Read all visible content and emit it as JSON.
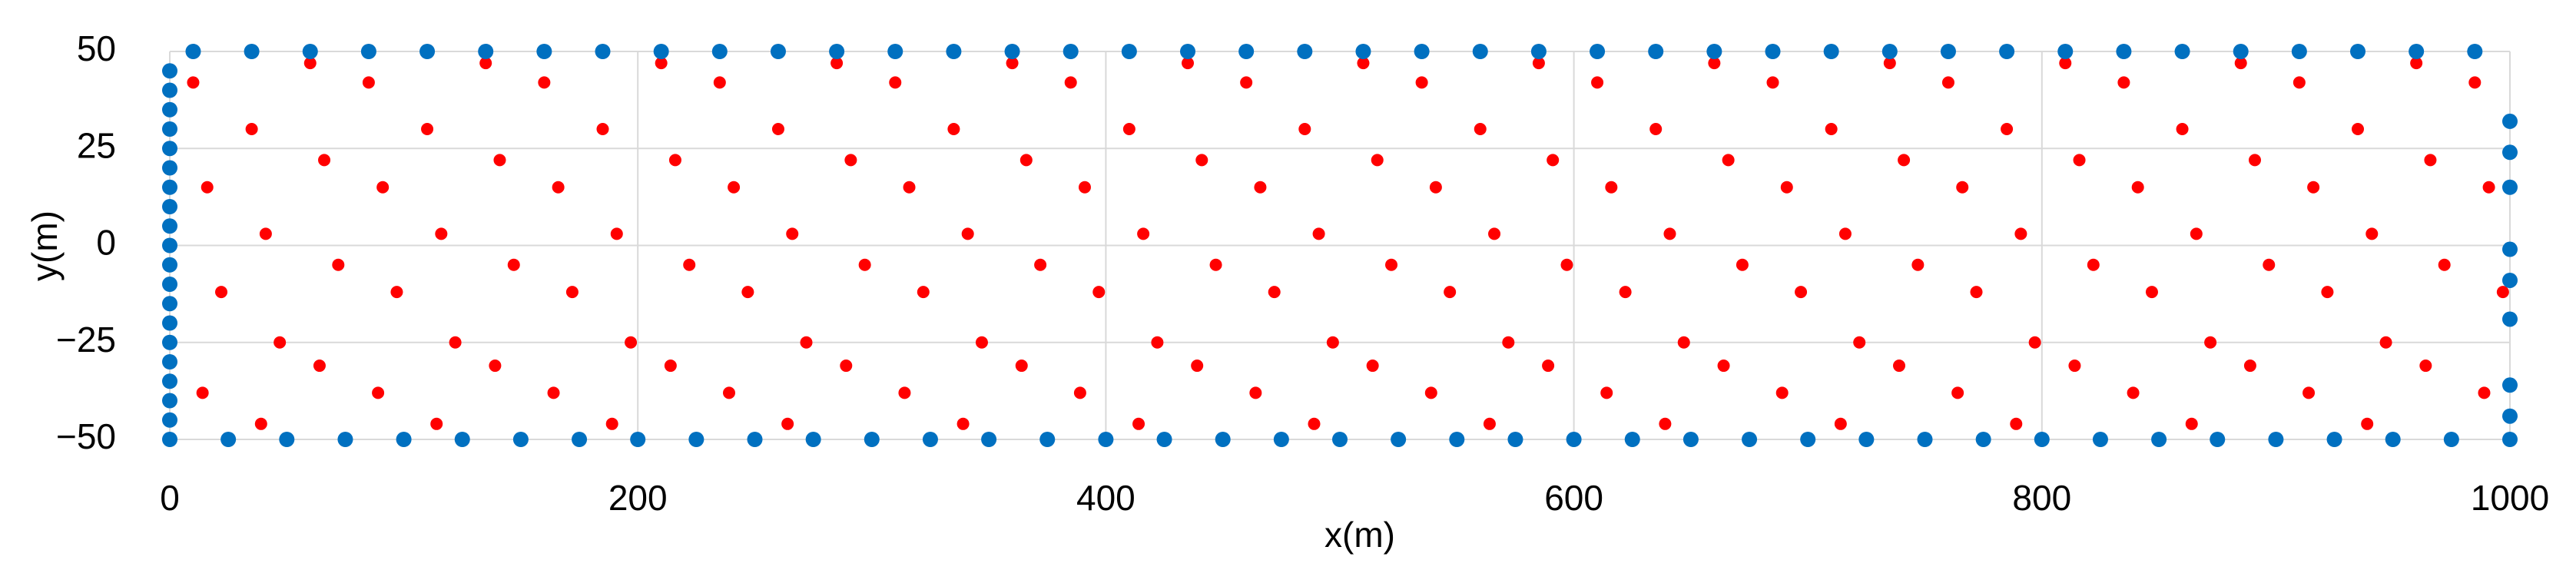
{
  "chart_data": {
    "type": "scatter",
    "x_label": "x(m)",
    "y_label": "y(m)",
    "xlim": [
      0,
      1000
    ],
    "ylim": [
      -50,
      50
    ],
    "xticks": [
      0,
      200,
      400,
      600,
      800,
      1000
    ],
    "yticks": [
      50,
      25,
      0,
      {
        "value": -25,
        "label": "−25"
      },
      {
        "value": -50,
        "label": "−50"
      }
    ],
    "grid": true,
    "series": [
      {
        "color": "#ff0000",
        "x": [
          10,
          16,
          22,
          14,
          35,
          41,
          47,
          39,
          60,
          66,
          72,
          64,
          85,
          91,
          97,
          89,
          110,
          116,
          122,
          114,
          135,
          141,
          147,
          139,
          160,
          166,
          172,
          164,
          185,
          191,
          197,
          189,
          210,
          216,
          222,
          214,
          235,
          241,
          247,
          239,
          260,
          266,
          272,
          264,
          285,
          291,
          297,
          289,
          310,
          316,
          322,
          314,
          335,
          341,
          347,
          339,
          360,
          366,
          372,
          364,
          385,
          391,
          397,
          389,
          410,
          416,
          422,
          414,
          435,
          441,
          447,
          439,
          460,
          466,
          472,
          464,
          485,
          491,
          497,
          489,
          510,
          516,
          522,
          514,
          535,
          541,
          547,
          539,
          560,
          566,
          572,
          564,
          585,
          591,
          597,
          589,
          610,
          616,
          622,
          614,
          635,
          641,
          647,
          639,
          660,
          666,
          672,
          664,
          685,
          691,
          697,
          689,
          710,
          716,
          722,
          714,
          735,
          741,
          747,
          739,
          760,
          766,
          772,
          764,
          785,
          791,
          797,
          789,
          810,
          816,
          822,
          814,
          835,
          841,
          847,
          839,
          860,
          866,
          872,
          864,
          885,
          891,
          897,
          889,
          910,
          916,
          922,
          914,
          935,
          941,
          947,
          939,
          960,
          966,
          972,
          964,
          985,
          991,
          997,
          989
        ],
        "y": [
          42,
          15,
          -12,
          -38,
          30,
          3,
          -25,
          -46,
          47,
          22,
          -5,
          -31,
          42,
          15,
          -12,
          -38,
          30,
          3,
          -25,
          -46,
          47,
          22,
          -5,
          -31,
          42,
          15,
          -12,
          -38,
          30,
          3,
          -25,
          -46,
          47,
          22,
          -5,
          -31,
          42,
          15,
          -12,
          -38,
          30,
          3,
          -25,
          -46,
          47,
          22,
          -5,
          -31,
          42,
          15,
          -12,
          -38,
          30,
          3,
          -25,
          -46,
          47,
          22,
          -5,
          -31,
          42,
          15,
          -12,
          -38,
          30,
          3,
          -25,
          -46,
          47,
          22,
          -5,
          -31,
          42,
          15,
          -12,
          -38,
          30,
          3,
          -25,
          -46,
          47,
          22,
          -5,
          -31,
          42,
          15,
          -12,
          -38,
          30,
          3,
          -25,
          -46,
          47,
          22,
          -5,
          -31,
          42,
          15,
          -12,
          -38,
          30,
          3,
          -25,
          -46,
          47,
          22,
          -5,
          -31,
          42,
          15,
          -12,
          -38,
          30,
          3,
          -25,
          -46,
          47,
          22,
          -5,
          -31,
          42,
          15,
          -12,
          -38,
          30,
          3,
          -25,
          -46,
          47,
          22,
          -5,
          -31,
          42,
          15,
          -12,
          -38,
          30,
          3,
          -25,
          -46,
          47,
          22,
          -5,
          -31,
          42,
          15,
          -12,
          -38,
          30,
          3,
          -25,
          -46,
          47,
          22,
          -5,
          -31,
          42,
          15,
          -12,
          -38
        ]
      },
      {
        "color": "#0070c0",
        "x": [
          10,
          35,
          60,
          85,
          110,
          135,
          160,
          185,
          210,
          235,
          260,
          285,
          310,
          335,
          360,
          385,
          410,
          435,
          460,
          485,
          510,
          535,
          560,
          585,
          610,
          635,
          660,
          685,
          710,
          735,
          760,
          785,
          810,
          835,
          860,
          885,
          910,
          935,
          960,
          985,
          0,
          25,
          50,
          75,
          100,
          125,
          150,
          175,
          200,
          225,
          250,
          275,
          300,
          325,
          350,
          375,
          400,
          425,
          450,
          475,
          500,
          525,
          550,
          575,
          600,
          625,
          650,
          675,
          700,
          725,
          750,
          775,
          800,
          825,
          850,
          875,
          900,
          925,
          950,
          975,
          1000,
          0,
          0,
          0,
          0,
          0,
          0,
          0,
          0,
          0,
          0,
          0,
          0,
          0,
          0,
          0,
          0,
          0,
          0,
          0,
          1000,
          1000,
          1000,
          1000,
          1000,
          1000,
          1000,
          1000
        ],
        "y": [
          50,
          50,
          50,
          50,
          50,
          50,
          50,
          50,
          50,
          50,
          50,
          50,
          50,
          50,
          50,
          50,
          50,
          50,
          50,
          50,
          50,
          50,
          50,
          50,
          50,
          50,
          50,
          50,
          50,
          50,
          50,
          50,
          50,
          50,
          50,
          50,
          50,
          50,
          50,
          50,
          -50,
          -50,
          -50,
          -50,
          -50,
          -50,
          -50,
          -50,
          -50,
          -50,
          -50,
          -50,
          -50,
          -50,
          -50,
          -50,
          -50,
          -50,
          -50,
          -50,
          -50,
          -50,
          -50,
          -50,
          -50,
          -50,
          -50,
          -50,
          -50,
          -50,
          -50,
          -50,
          -50,
          -50,
          -50,
          -50,
          -50,
          -50,
          -50,
          -50,
          -50,
          -45,
          -40,
          -35,
          -30,
          -25,
          -20,
          -15,
          -10,
          -5,
          0,
          5,
          10,
          15,
          20,
          25,
          30,
          35,
          40,
          45,
          32,
          24,
          15,
          -1,
          -9,
          -19,
          -36,
          -44
        ]
      }
    ]
  }
}
